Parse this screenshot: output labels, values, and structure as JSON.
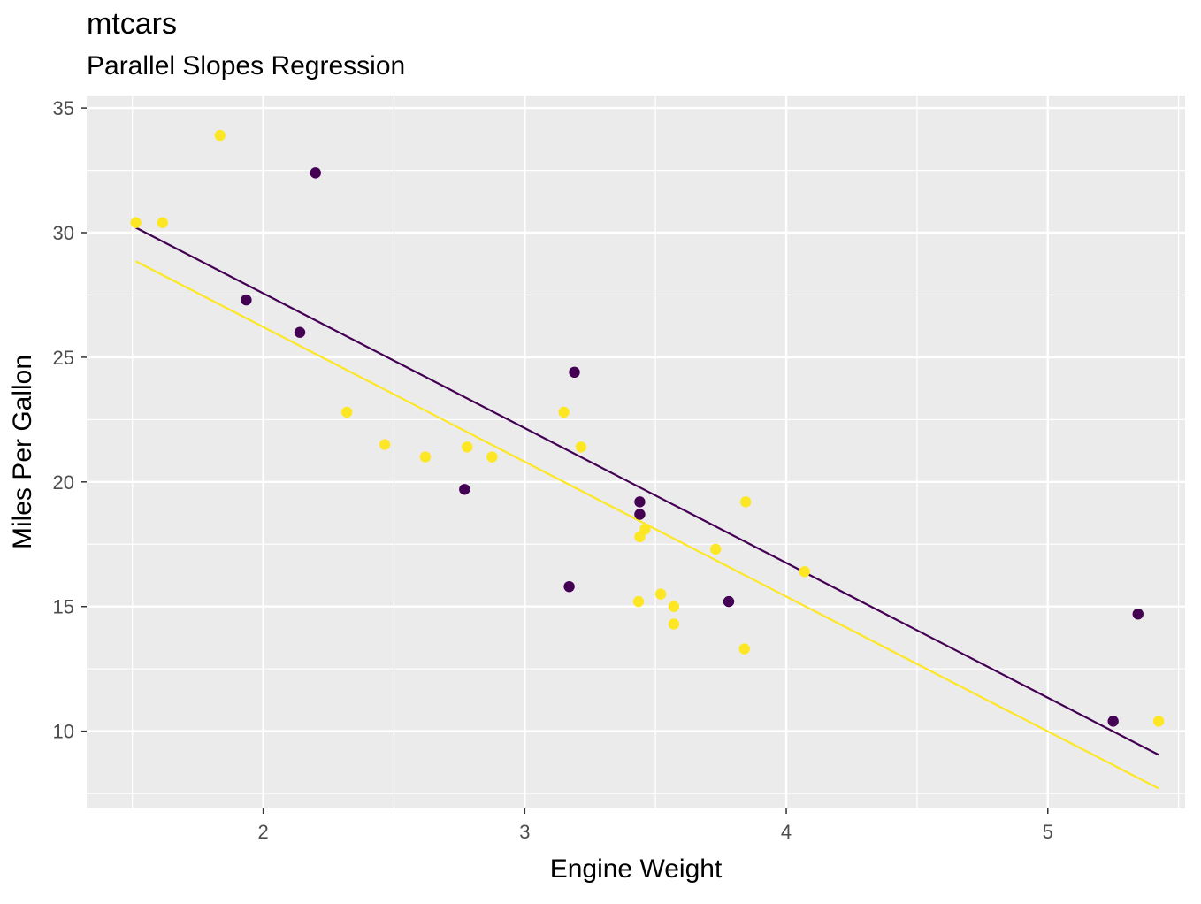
{
  "chart_data": {
    "type": "scatter",
    "title": "mtcars",
    "subtitle": "Parallel Slopes Regression",
    "xlabel": "Engine Weight",
    "ylabel": "Miles Per Gallon",
    "xlim": [
      1.325,
      5.525
    ],
    "ylim": [
      6.9,
      35.5
    ],
    "x_ticks": [
      2,
      3,
      4,
      5
    ],
    "y_ticks": [
      10,
      15,
      20,
      25,
      30,
      35
    ],
    "grid": true,
    "legend": "none",
    "series": [
      {
        "color": "#440154",
        "points": [
          {
            "x": 2.2,
            "y": 32.4
          },
          {
            "x": 1.935,
            "y": 27.3
          },
          {
            "x": 2.14,
            "y": 26.0
          },
          {
            "x": 3.19,
            "y": 24.4
          },
          {
            "x": 2.77,
            "y": 19.7
          },
          {
            "x": 3.44,
            "y": 19.2
          },
          {
            "x": 3.44,
            "y": 18.7
          },
          {
            "x": 3.17,
            "y": 15.8
          },
          {
            "x": 3.78,
            "y": 15.2
          },
          {
            "x": 5.25,
            "y": 10.4
          },
          {
            "x": 5.345,
            "y": 14.7
          }
        ],
        "fit_line": [
          {
            "x": 1.513,
            "y": 30.2
          },
          {
            "x": 5.424,
            "y": 9.05
          }
        ]
      },
      {
        "color": "#fde725",
        "points": [
          {
            "x": 1.835,
            "y": 33.9
          },
          {
            "x": 1.513,
            "y": 30.4
          },
          {
            "x": 1.615,
            "y": 30.4
          },
          {
            "x": 2.32,
            "y": 22.8
          },
          {
            "x": 2.465,
            "y": 21.5
          },
          {
            "x": 2.62,
            "y": 21.0
          },
          {
            "x": 2.78,
            "y": 21.4
          },
          {
            "x": 2.875,
            "y": 21.0
          },
          {
            "x": 3.15,
            "y": 22.8
          },
          {
            "x": 3.215,
            "y": 21.4
          },
          {
            "x": 3.44,
            "y": 17.8
          },
          {
            "x": 3.46,
            "y": 18.1
          },
          {
            "x": 3.435,
            "y": 15.2
          },
          {
            "x": 3.52,
            "y": 15.5
          },
          {
            "x": 3.57,
            "y": 15.0
          },
          {
            "x": 3.57,
            "y": 14.3
          },
          {
            "x": 3.73,
            "y": 17.3
          },
          {
            "x": 3.845,
            "y": 19.2
          },
          {
            "x": 3.84,
            "y": 13.3
          },
          {
            "x": 4.07,
            "y": 16.4
          },
          {
            "x": 5.424,
            "y": 10.4
          }
        ],
        "fit_line": [
          {
            "x": 1.513,
            "y": 28.85
          },
          {
            "x": 5.424,
            "y": 7.7
          }
        ]
      }
    ]
  }
}
